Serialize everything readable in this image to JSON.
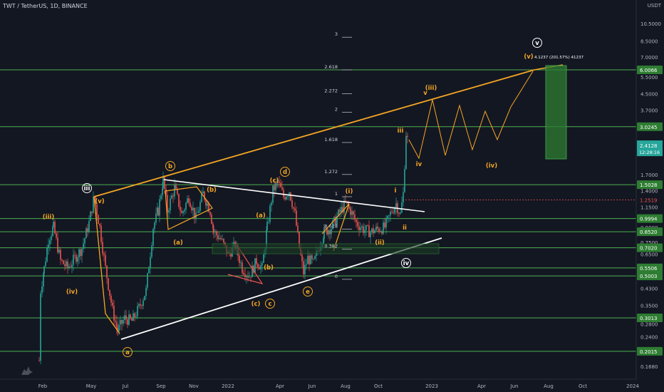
{
  "header": {
    "symbol": "TWT / TetherUS, 1D, BINANCE",
    "currency": "USDT"
  },
  "chart_data": {
    "type": "candlestick",
    "scale": "log",
    "ylim": [
      0.16,
      11.5
    ],
    "x_tick_labels": [
      "Feb",
      "May",
      "Jul",
      "Sep",
      "Nov",
      "2022",
      "Apr",
      "Jun",
      "Aug",
      "Oct",
      "2023",
      "Apr",
      "Jun",
      "Aug",
      "Oct",
      "2024"
    ],
    "y_tick_labels": [
      "10.5000",
      "8.5000",
      "7.0000",
      "5.5000",
      "4.5000",
      "3.7000",
      "3.0000",
      "2.4000",
      "1.7000",
      "1.4000",
      "1.1500",
      "0.9000",
      "0.7500",
      "0.6500",
      "0.5200",
      "0.4300",
      "0.3500",
      "0.2800",
      "0.2400",
      "0.1680"
    ],
    "horizontal_levels": [
      "6.0066",
      "3.0245",
      "1.5028",
      "0.9994",
      "0.8520",
      "0.7020",
      "0.5506",
      "0.5003",
      "0.3013",
      "0.2015"
    ],
    "last_price": {
      "value": "2.4128",
      "countdown": "12:28:16"
    },
    "current_price_marker": "1.2519",
    "fib_levels": [
      {
        "label": "3",
        "value": 8.9
      },
      {
        "label": "2.618",
        "value": 6.0
      },
      {
        "label": "2.272",
        "value": 4.5
      },
      {
        "label": "2",
        "value": 3.6
      },
      {
        "label": "1.618",
        "value": 2.5
      },
      {
        "label": "1.272",
        "value": 1.7
      },
      {
        "label": "1",
        "value": 1.3
      },
      {
        "label": "0.618",
        "value": 0.88
      },
      {
        "label": "0.382",
        "value": 0.69
      },
      {
        "label": "0",
        "value": 0.48
      }
    ],
    "target_note": "4.1237 (201.57%) 41237",
    "wave_labels": [
      {
        "text": "iii",
        "circled": true,
        "color": "#ffffff"
      },
      {
        "text": "(iii)",
        "circled": false,
        "color": "#f5a623"
      },
      {
        "text": "(iv)",
        "circled": false,
        "color": "#f5a623"
      },
      {
        "text": "(v)",
        "circled": false,
        "color": "#f5a623"
      },
      {
        "text": "a",
        "circled": true,
        "color": "#f5a623"
      },
      {
        "text": "b",
        "circled": true,
        "color": "#f5a623"
      },
      {
        "text": "(a)",
        "circled": false,
        "color": "#f5a623"
      },
      {
        "text": "(b)",
        "circled": false,
        "color": "#f5a623"
      },
      {
        "text": "(c)",
        "circled": false,
        "color": "#f5a623"
      },
      {
        "text": "c",
        "circled": true,
        "color": "#f5a623"
      },
      {
        "text": "(a)",
        "circled": false,
        "color": "#f5a623"
      },
      {
        "text": "(b)",
        "circled": false,
        "color": "#f5a623"
      },
      {
        "text": "(c)",
        "circled": false,
        "color": "#f5a623"
      },
      {
        "text": "d",
        "circled": true,
        "color": "#f5a623"
      },
      {
        "text": "e",
        "circled": true,
        "color": "#f5a623"
      },
      {
        "text": "(i)",
        "circled": false,
        "color": "#f5a623"
      },
      {
        "text": "(ii)",
        "circled": false,
        "color": "#f5a623"
      },
      {
        "text": "i",
        "circled": false,
        "color": "#f5a623"
      },
      {
        "text": "ii",
        "circled": false,
        "color": "#f5a623"
      },
      {
        "text": "iii",
        "circled": false,
        "color": "#f5a623"
      },
      {
        "text": "iv",
        "circled": false,
        "color": "#f5a623"
      },
      {
        "text": "v",
        "circled": false,
        "color": "#f5a623"
      },
      {
        "text": "(iii)",
        "circled": false,
        "color": "#f5a623"
      },
      {
        "text": "(iv)",
        "circled": false,
        "color": "#f5a623"
      },
      {
        "text": "(v)",
        "circled": false,
        "color": "#f5a623"
      },
      {
        "text": "iv",
        "circled": true,
        "color": "#ffffff"
      },
      {
        "text": "v",
        "circled": true,
        "color": "#ffffff"
      }
    ],
    "colors": {
      "background": "#131722",
      "up": "#26a69a",
      "down": "#ef5350",
      "level_line": "#4caf50",
      "level_label": "#2e7d32",
      "trend_orange": "#f5a623",
      "trend_white": "#ffffff",
      "target_box": "#2e7d32"
    }
  }
}
